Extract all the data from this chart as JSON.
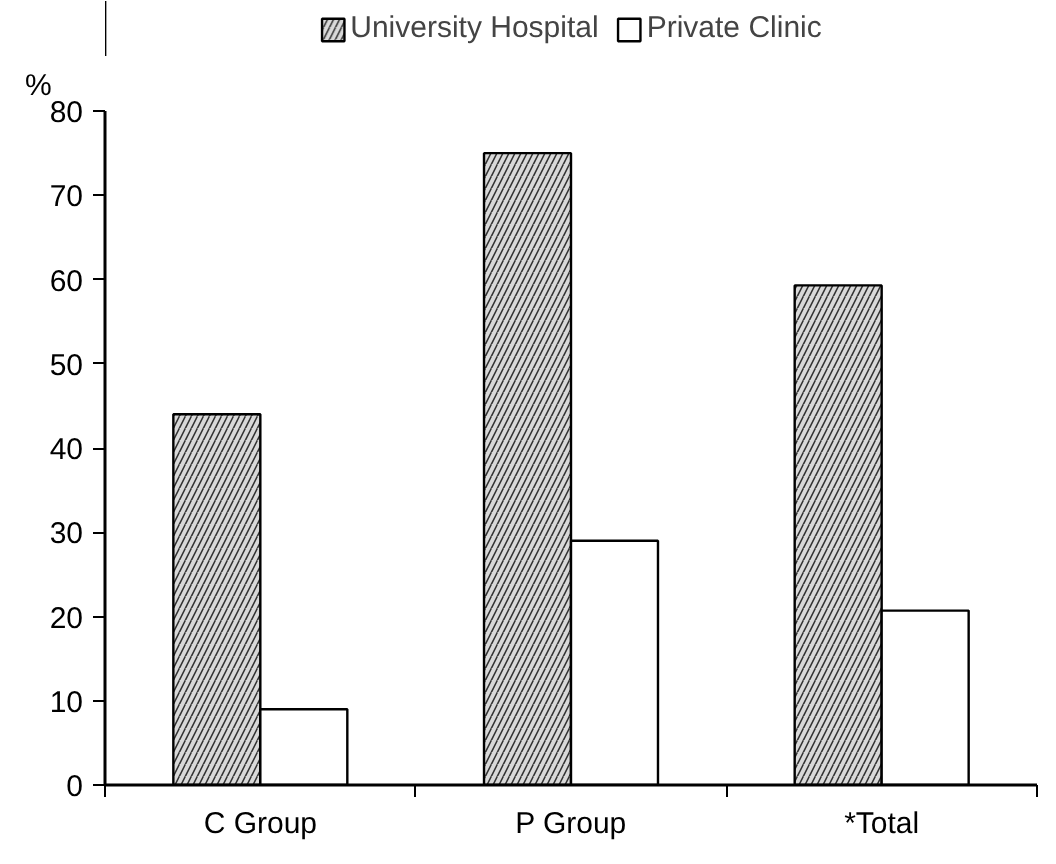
{
  "chart_data": {
    "type": "bar",
    "ylabel": "%",
    "categories": [
      "C Group",
      "P Group",
      "*Total"
    ],
    "series": [
      {
        "name": "University Hospital",
        "color": "#d9d9d9",
        "values": [
          44,
          75,
          59.3
        ]
      },
      {
        "name": "Private Clinic",
        "color": "#ffffff",
        "values": [
          9,
          29,
          20.7
        ]
      }
    ],
    "ylim": [
      0,
      80
    ],
    "yticks": [
      0,
      10,
      20,
      30,
      40,
      50,
      60,
      70,
      80
    ],
    "grid": false,
    "legend": "top"
  }
}
